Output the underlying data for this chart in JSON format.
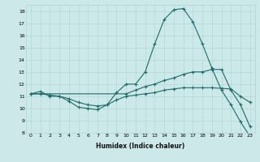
{
  "xlabel": "Humidex (Indice chaleur)",
  "xlim": [
    -0.5,
    23.5
  ],
  "ylim": [
    8,
    18.5
  ],
  "yticks": [
    8,
    9,
    10,
    11,
    12,
    13,
    14,
    15,
    16,
    17,
    18
  ],
  "xticks": [
    0,
    1,
    2,
    3,
    4,
    5,
    6,
    7,
    8,
    9,
    10,
    11,
    12,
    13,
    14,
    15,
    16,
    17,
    18,
    19,
    20,
    21,
    22,
    23
  ],
  "bg_color": "#cce8e8",
  "line_color": "#1e6b6b",
  "line1_x": [
    0,
    1,
    2,
    3,
    4,
    5,
    6,
    7,
    8,
    9,
    10,
    11,
    12,
    13,
    14,
    15,
    16,
    17,
    18,
    19,
    20,
    21,
    22,
    23
  ],
  "line1_y": [
    11.2,
    11.4,
    11.0,
    11.0,
    10.6,
    10.1,
    10.0,
    9.9,
    10.3,
    11.3,
    12.0,
    12.0,
    13.0,
    15.3,
    17.3,
    18.1,
    18.2,
    17.1,
    15.3,
    13.3,
    11.5,
    10.3,
    8.9,
    7.7
  ],
  "line2_x": [
    0,
    10,
    11,
    12,
    13,
    14,
    15,
    16,
    17,
    18,
    19,
    20,
    21,
    22,
    23
  ],
  "line2_y": [
    11.2,
    11.2,
    11.5,
    11.8,
    12.0,
    12.3,
    12.5,
    12.8,
    13.0,
    13.0,
    13.2,
    13.2,
    11.5,
    10.3,
    8.5
  ],
  "line3_x": [
    0,
    1,
    2,
    3,
    4,
    5,
    6,
    7,
    8,
    9,
    10,
    11,
    12,
    13,
    14,
    15,
    16,
    17,
    18,
    19,
    20,
    21,
    22,
    23
  ],
  "line3_y": [
    11.2,
    11.2,
    11.1,
    11.0,
    10.8,
    10.5,
    10.3,
    10.2,
    10.3,
    10.7,
    11.0,
    11.1,
    11.2,
    11.3,
    11.5,
    11.6,
    11.7,
    11.7,
    11.7,
    11.7,
    11.65,
    11.6,
    11.0,
    10.5
  ]
}
